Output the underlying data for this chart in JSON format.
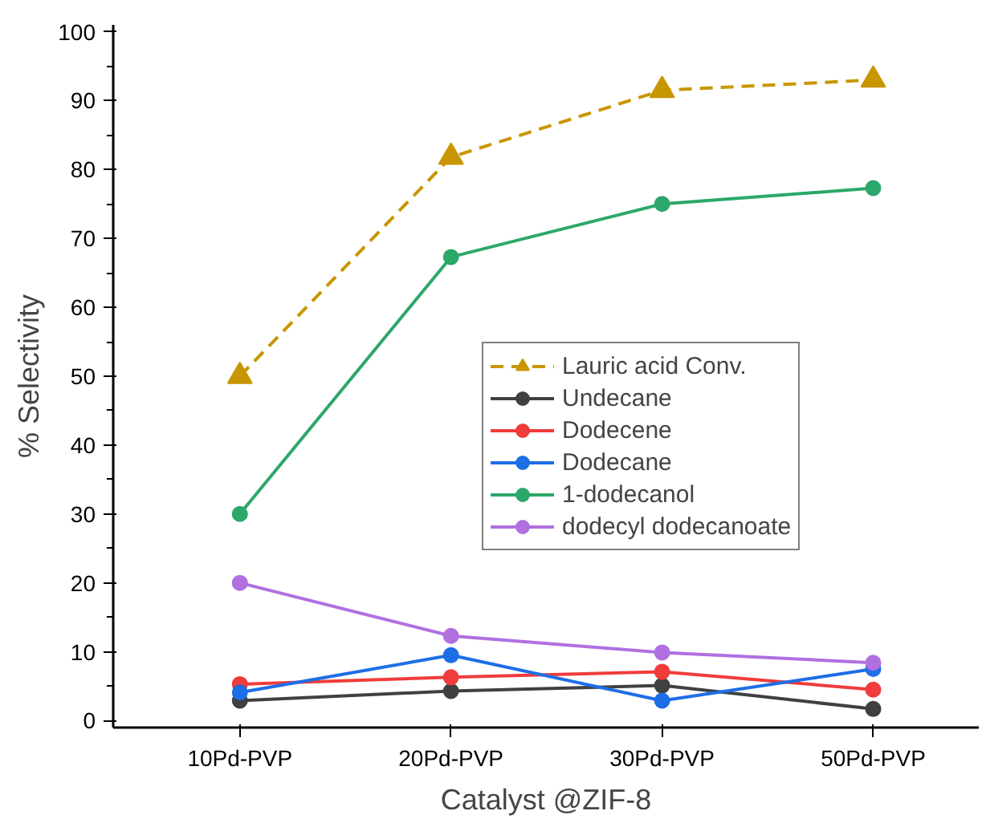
{
  "chart_data": {
    "type": "line",
    "xlabel": "Catalyst @ZIF-8",
    "ylabel": "% Selectivity",
    "categories": [
      "10Pd-PVP",
      "20Pd-PVP",
      "30Pd-PVP",
      "50Pd-PVP"
    ],
    "ylim": [
      -1,
      101
    ],
    "yticks": [
      0,
      10,
      20,
      30,
      40,
      50,
      60,
      70,
      80,
      90,
      100
    ],
    "legend": "center",
    "marker": "circle",
    "grid": false,
    "series": [
      {
        "name": "Lauric acid Conv.",
        "color": "#c89600",
        "marker": "triangle",
        "line_style": "dashed",
        "values": [
          50,
          81.8,
          91.5,
          93
        ]
      },
      {
        "name": "Undecane",
        "color": "#404040",
        "values": [
          2.9,
          4.3,
          5.1,
          1.7
        ]
      },
      {
        "name": "Dodecene",
        "color": "#f03c3c",
        "values": [
          5.3,
          6.3,
          7.1,
          4.5
        ]
      },
      {
        "name": "Dodecane",
        "color": "#1e6ee6",
        "values": [
          4.1,
          9.5,
          2.9,
          7.5
        ]
      },
      {
        "name": "1-dodecanol",
        "color": "#2ca86a",
        "values": [
          30,
          67.3,
          75,
          77.3
        ]
      },
      {
        "name": "dodecyl dodecanoate",
        "color": "#b070e0",
        "values": [
          20,
          12.3,
          9.9,
          8.4
        ]
      }
    ]
  }
}
